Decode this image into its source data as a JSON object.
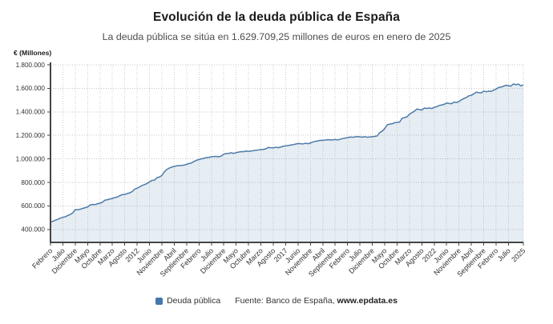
{
  "header": {
    "title": "Evolución de la deuda pública de España",
    "subtitle": "La deuda pública se sitúa en 1.629.709,25 millones de euros en enero de 2025"
  },
  "legend": {
    "label": "Deuda pública",
    "marker_color": "#4478ad"
  },
  "source": {
    "prefix": "Fuente: Banco de España, ",
    "link": "www.epdata.es"
  },
  "chart_data": {
    "type": "area",
    "title": "Evolución de la deuda pública de España",
    "subtitle": "La deuda pública se sitúa en 1.629.709,25 millones de euros en enero de 2025",
    "ylabel": "€ (Millones)",
    "ylim": [
      290000,
      1800000
    ],
    "y_ticks": [
      400000,
      600000,
      800000,
      1000000,
      1200000,
      1400000,
      1600000,
      1800000
    ],
    "grid": "dotted",
    "legend_position": "bottom",
    "x_frequency": "monthly",
    "x_start": "2009-02",
    "x_end": "2025-01",
    "x_tick_every": 5,
    "x_tick_labels": [
      "Febrero",
      "Julio",
      "Diciembre",
      "Mayo",
      "Octubre",
      "Marzo",
      "Agosto",
      "2012",
      "Junio",
      "Noviembre",
      "Abril",
      "Septiembre",
      "Febrero",
      "Julio",
      "Diciembre",
      "Mayo",
      "Octubre",
      "Marzo",
      "Agosto",
      "2017",
      "Junio",
      "Noviembre",
      "Abril",
      "Septiembre",
      "Febrero",
      "Julio",
      "Diciembre",
      "Mayo",
      "Octubre",
      "Marzo",
      "Agosto",
      "2022",
      "Junio",
      "Noviembre",
      "Abril",
      "Septiembre",
      "Febrero",
      "Julio",
      "2025"
    ],
    "last_value": 1629709.25,
    "series": [
      {
        "name": "Deuda pública",
        "color": "#4e7ba8",
        "fill_color": "rgba(101,141,183,0.16)",
        "values": [
          462000,
          470000,
          479000,
          487000,
          497000,
          503000,
          508000,
          519000,
          528000,
          541000,
          569000,
          567000,
          572000,
          579000,
          585000,
          591000,
          608000,
          613000,
          611000,
          619000,
          624000,
          632000,
          649000,
          653000,
          659000,
          664000,
          671000,
          676000,
          688000,
          696000,
          697000,
          706000,
          711000,
          722000,
          743000,
          751000,
          762000,
          774000,
          781000,
          791000,
          804000,
          817000,
          819000,
          840000,
          846000,
          859000,
          891000,
          910000,
          922000,
          931000,
          936000,
          941000,
          943000,
          945000,
          947000,
          954000,
          961000,
          966000,
          979000,
          988000,
          995000,
          1001000,
          1005000,
          1012000,
          1013000,
          1018000,
          1020000,
          1021000,
          1018000,
          1024000,
          1041000,
          1045000,
          1047000,
          1052000,
          1047000,
          1053000,
          1058000,
          1062000,
          1061000,
          1067000,
          1063000,
          1068000,
          1070000,
          1073000,
          1076000,
          1081000,
          1080000,
          1086000,
          1097000,
          1095000,
          1094000,
          1099000,
          1095000,
          1101000,
          1107000,
          1111000,
          1113000,
          1118000,
          1121000,
          1126000,
          1131000,
          1129000,
          1127000,
          1133000,
          1129000,
          1135000,
          1144000,
          1149000,
          1153000,
          1158000,
          1157000,
          1161000,
          1163000,
          1162000,
          1161000,
          1166000,
          1161000,
          1167000,
          1173000,
          1177000,
          1181000,
          1186000,
          1184000,
          1187000,
          1190000,
          1187000,
          1185000,
          1189000,
          1184000,
          1187000,
          1189000,
          1191000,
          1196000,
          1224000,
          1236000,
          1258000,
          1289000,
          1296000,
          1298000,
          1308000,
          1310000,
          1313000,
          1345000,
          1351000,
          1358000,
          1380000,
          1393000,
          1406000,
          1424000,
          1419000,
          1416000,
          1432000,
          1429000,
          1433000,
          1428000,
          1439000,
          1444000,
          1454000,
          1458000,
          1464000,
          1475000,
          1471000,
          1469000,
          1483000,
          1479000,
          1488000,
          1503000,
          1514000,
          1522000,
          1536000,
          1541000,
          1553000,
          1568000,
          1563000,
          1561000,
          1577000,
          1571000,
          1576000,
          1574000,
          1585000,
          1593000,
          1607000,
          1611000,
          1618000,
          1626000,
          1622000,
          1619000,
          1637000,
          1631000,
          1636000,
          1621000,
          1629709
        ]
      }
    ]
  }
}
